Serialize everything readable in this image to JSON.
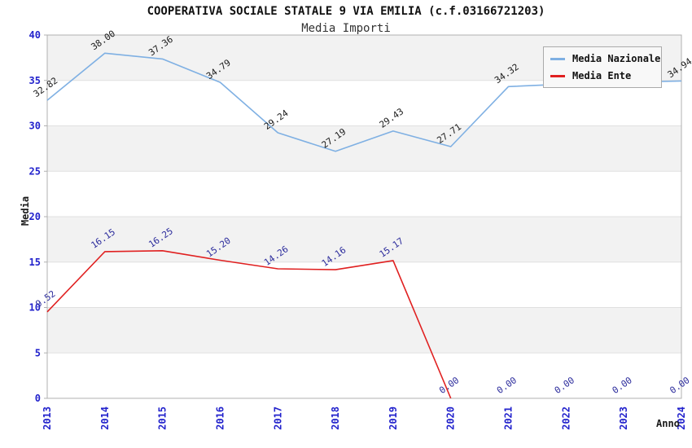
{
  "chart_data": {
    "type": "line",
    "title": "COOPERATIVA SOCIALE STATALE 9 VIA EMILIA (c.f.03166721203)",
    "subtitle": "Media Importi",
    "xlabel": "Anno",
    "ylabel": "Media",
    "x_categories": [
      "2013",
      "2014",
      "2015",
      "2016",
      "2017",
      "2018",
      "2019",
      "2020",
      "2021",
      "2022",
      "2023",
      "2024"
    ],
    "ylim": [
      0,
      40
    ],
    "ytick_step": 5,
    "yticks": [
      0,
      5,
      10,
      15,
      20,
      25,
      30,
      35,
      40
    ],
    "grid": "horizontal-bands",
    "legend_position": "top-right",
    "series": [
      {
        "name": "Media Nazionale",
        "color": "#7fb0e3",
        "label_color": "#1a1a1a",
        "values": [
          32.82,
          38.0,
          37.36,
          34.79,
          29.24,
          27.19,
          29.43,
          27.71,
          34.32,
          34.6,
          34.8,
          34.94
        ],
        "labels": [
          "32.82",
          "38.00",
          "37.36",
          "34.79",
          "29.24",
          "27.19",
          "29.43",
          "27.71",
          "34.32",
          null,
          null,
          "34.94"
        ]
      },
      {
        "name": "Media Ente",
        "color": "#e02020",
        "label_color": "#2b2b9c",
        "values": [
          9.52,
          16.15,
          16.25,
          15.2,
          14.26,
          14.16,
          15.17,
          0.0,
          0.0,
          0.0,
          0.0,
          0.0
        ],
        "labels": [
          "9.52",
          "16.15",
          "16.25",
          "15.20",
          "14.26",
          "14.16",
          "15.17",
          "0.00",
          "0.00",
          "0.00",
          "0.00",
          "0.00"
        ],
        "line_end_index": 7
      }
    ],
    "colors": {
      "band_a": "#f2f2f2",
      "band_b": "#ffffff",
      "grid_line": "#e0e0e0",
      "plot_border": "#b0b0b0",
      "tick_label": "#2222cc",
      "axis_title": "#1a1a1a",
      "legend_bg": "#f8f8f8",
      "legend_border": "#aaaaaa",
      "legend_text": "#111111"
    }
  }
}
